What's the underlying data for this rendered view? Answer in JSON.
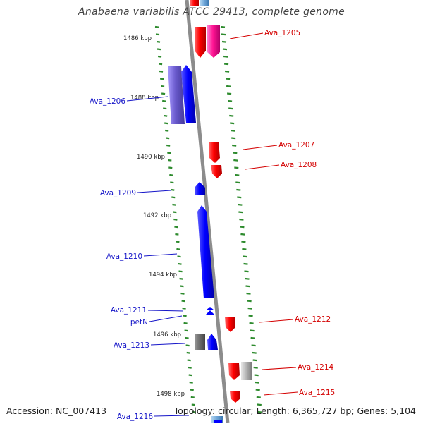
{
  "title": "Anabaena variabilis ATCC 29413, complete genome",
  "footer": {
    "accession": "Accession: NC_007413",
    "topology": "Topology: circular; Length: 6,365,727 bp; Genes: 5,104"
  },
  "colors": {
    "backbone": "#8c8c8c",
    "tick": "#2e8b2e",
    "forward_label": "#1515c8",
    "reverse_label": "#d40000"
  },
  "scale_labels": [
    "1486 kbp",
    "1488 kbp",
    "1490 kbp",
    "1492 kbp",
    "1494 kbp",
    "1496 kbp",
    "1498 kbp"
  ],
  "genes": [
    {
      "name": "Ava_1205",
      "strand": "reverse"
    },
    {
      "name": "Ava_1206",
      "strand": "forward"
    },
    {
      "name": "Ava_1207",
      "strand": "reverse"
    },
    {
      "name": "Ava_1208",
      "strand": "reverse"
    },
    {
      "name": "Ava_1209",
      "strand": "forward"
    },
    {
      "name": "Ava_1210",
      "strand": "forward"
    },
    {
      "name": "Ava_1211",
      "strand": "forward"
    },
    {
      "name": "petN",
      "strand": "forward"
    },
    {
      "name": "Ava_1212",
      "strand": "reverse"
    },
    {
      "name": "Ava_1213",
      "strand": "forward"
    },
    {
      "name": "Ava_1214",
      "strand": "reverse"
    },
    {
      "name": "Ava_1215",
      "strand": "reverse"
    },
    {
      "name": "Ava_1216",
      "strand": "forward"
    }
  ]
}
